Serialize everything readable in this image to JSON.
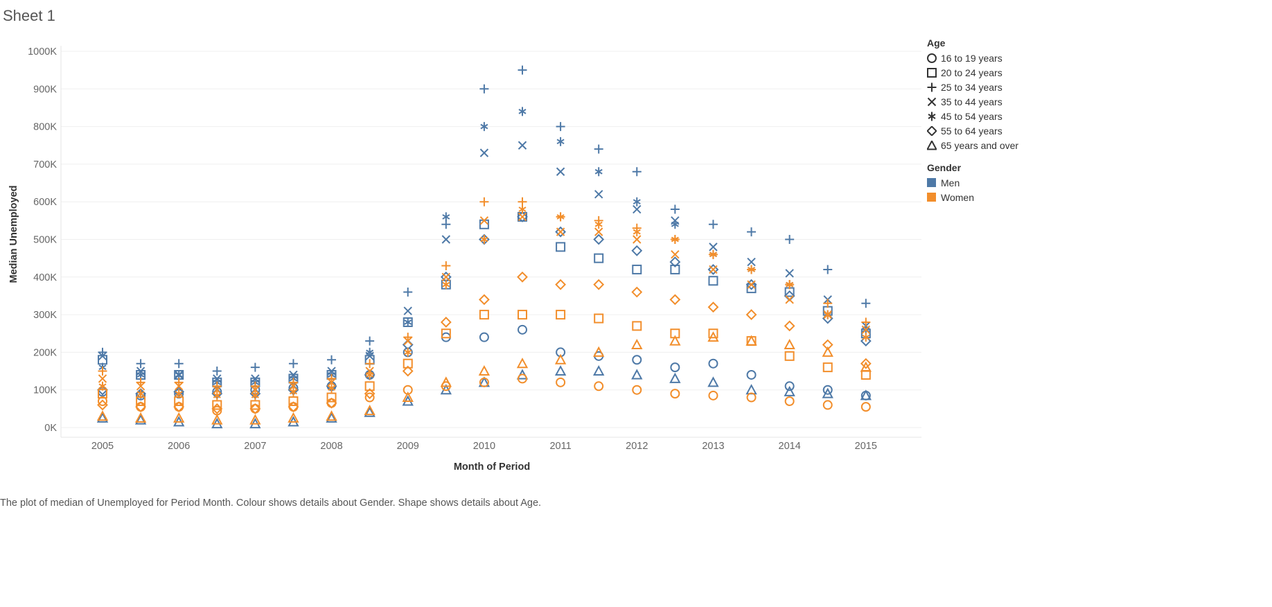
{
  "sheet_title": "Sheet 1",
  "caption": "The plot of median of Unemployed for Period Month.  Colour shows details about Gender.  Shape shows details about Age.",
  "legend": {
    "age_title": "Age",
    "age_items": [
      {
        "label": "16 to 19 years",
        "shape": "circle-icon"
      },
      {
        "label": "20 to 24 years",
        "shape": "square-icon"
      },
      {
        "label": "25 to 34 years",
        "shape": "plus-icon"
      },
      {
        "label": "35 to 44 years",
        "shape": "cross-icon"
      },
      {
        "label": "45 to 54 years",
        "shape": "asterisk-icon"
      },
      {
        "label": "55 to 64 years",
        "shape": "diamond-icon"
      },
      {
        "label": "65 years and over",
        "shape": "triangle-icon"
      }
    ],
    "gender_title": "Gender",
    "gender_items": [
      {
        "label": "Men",
        "color": "#4e79a7"
      },
      {
        "label": "Women",
        "color": "#f28e2b"
      }
    ]
  },
  "chart_data": {
    "type": "scatter",
    "title": "",
    "xlabel": "Month of Period",
    "ylabel": "Median Unemployed",
    "x_ticks": [
      "2005",
      "2006",
      "2007",
      "2008",
      "2009",
      "2010",
      "2011",
      "2012",
      "2013",
      "2014",
      "2015"
    ],
    "y_ticks": [
      "0K",
      "100K",
      "200K",
      "300K",
      "400K",
      "500K",
      "600K",
      "700K",
      "800K",
      "900K",
      "1000K"
    ],
    "xlim": [
      "2005-01",
      "2015-02"
    ],
    "ylim": [
      0,
      1000000
    ],
    "grid": "horizontal",
    "legend_position": "right",
    "x_months": [
      "2005-01",
      "2005-07",
      "2006-01",
      "2006-07",
      "2007-01",
      "2007-07",
      "2008-01",
      "2008-07",
      "2009-01",
      "2009-07",
      "2010-01",
      "2010-07",
      "2011-01",
      "2011-07",
      "2012-01",
      "2012-07",
      "2013-01",
      "2013-07",
      "2014-01",
      "2014-07",
      "2015-01"
    ],
    "series": [
      {
        "gender": "Men",
        "age": "16 to 19 years",
        "values": [
          95000,
          85000,
          90000,
          95000,
          100000,
          105000,
          110000,
          140000,
          200000,
          240000,
          240000,
          260000,
          200000,
          190000,
          180000,
          160000,
          170000,
          140000,
          110000,
          100000,
          85000
        ]
      },
      {
        "gender": "Men",
        "age": "20 to 24 years",
        "values": [
          180000,
          140000,
          140000,
          120000,
          120000,
          130000,
          140000,
          180000,
          280000,
          380000,
          540000,
          560000,
          480000,
          450000,
          420000,
          420000,
          390000,
          370000,
          360000,
          310000,
          250000
        ]
      },
      {
        "gender": "Men",
        "age": "25 to 34 years",
        "values": [
          200000,
          170000,
          170000,
          150000,
          160000,
          170000,
          180000,
          230000,
          360000,
          540000,
          900000,
          950000,
          800000,
          740000,
          680000,
          580000,
          540000,
          520000,
          500000,
          420000,
          330000
        ]
      },
      {
        "gender": "Men",
        "age": "35 to 44 years",
        "values": [
          190000,
          150000,
          140000,
          130000,
          130000,
          140000,
          150000,
          190000,
          310000,
          500000,
          730000,
          750000,
          680000,
          620000,
          580000,
          550000,
          480000,
          440000,
          410000,
          340000,
          270000
        ]
      },
      {
        "gender": "Men",
        "age": "45 to 54 years",
        "values": [
          160000,
          140000,
          140000,
          120000,
          120000,
          130000,
          140000,
          200000,
          280000,
          560000,
          800000,
          840000,
          760000,
          680000,
          600000,
          540000,
          460000,
          420000,
          380000,
          300000,
          260000
        ]
      },
      {
        "gender": "Men",
        "age": "55 to 64 years",
        "values": [
          100000,
          90000,
          95000,
          90000,
          90000,
          100000,
          110000,
          140000,
          220000,
          400000,
          500000,
          560000,
          520000,
          500000,
          470000,
          440000,
          420000,
          380000,
          350000,
          290000,
          230000
        ]
      },
      {
        "gender": "Men",
        "age": "65 years and over",
        "values": [
          25000,
          20000,
          15000,
          10000,
          10000,
          15000,
          25000,
          40000,
          70000,
          100000,
          120000,
          140000,
          150000,
          150000,
          140000,
          130000,
          120000,
          100000,
          95000,
          90000,
          85000
        ]
      },
      {
        "gender": "Women",
        "age": "16 to 19 years",
        "values": [
          70000,
          55000,
          55000,
          45000,
          50000,
          55000,
          65000,
          80000,
          100000,
          110000,
          120000,
          130000,
          120000,
          110000,
          100000,
          90000,
          85000,
          80000,
          70000,
          60000,
          55000
        ]
      },
      {
        "gender": "Women",
        "age": "20 to 24 years",
        "values": [
          90000,
          70000,
          70000,
          60000,
          60000,
          70000,
          80000,
          110000,
          170000,
          250000,
          300000,
          300000,
          300000,
          290000,
          270000,
          250000,
          250000,
          230000,
          190000,
          160000,
          140000
        ]
      },
      {
        "gender": "Women",
        "age": "25 to 34 years",
        "values": [
          150000,
          120000,
          120000,
          110000,
          110000,
          120000,
          130000,
          170000,
          240000,
          430000,
          600000,
          600000,
          560000,
          550000,
          530000,
          500000,
          460000,
          420000,
          380000,
          330000,
          280000
        ]
      },
      {
        "gender": "Women",
        "age": "35 to 44 years",
        "values": [
          130000,
          110000,
          110000,
          100000,
          100000,
          110000,
          120000,
          150000,
          230000,
          400000,
          550000,
          560000,
          520000,
          520000,
          500000,
          460000,
          420000,
          380000,
          340000,
          300000,
          260000
        ]
      },
      {
        "gender": "Women",
        "age": "45 to 54 years",
        "values": [
          110000,
          90000,
          90000,
          85000,
          85000,
          95000,
          105000,
          140000,
          200000,
          380000,
          500000,
          580000,
          560000,
          540000,
          520000,
          500000,
          460000,
          420000,
          380000,
          300000,
          240000
        ]
      },
      {
        "gender": "Women",
        "age": "55 to 64 years",
        "values": [
          60000,
          55000,
          55000,
          50000,
          50000,
          55000,
          65000,
          90000,
          150000,
          280000,
          340000,
          400000,
          380000,
          380000,
          360000,
          340000,
          320000,
          300000,
          270000,
          220000,
          170000
        ]
      },
      {
        "gender": "Women",
        "age": "65 years and over",
        "values": [
          30000,
          25000,
          25000,
          20000,
          20000,
          25000,
          30000,
          45000,
          80000,
          120000,
          150000,
          170000,
          180000,
          200000,
          220000,
          230000,
          240000,
          230000,
          220000,
          200000,
          160000
        ]
      }
    ]
  }
}
